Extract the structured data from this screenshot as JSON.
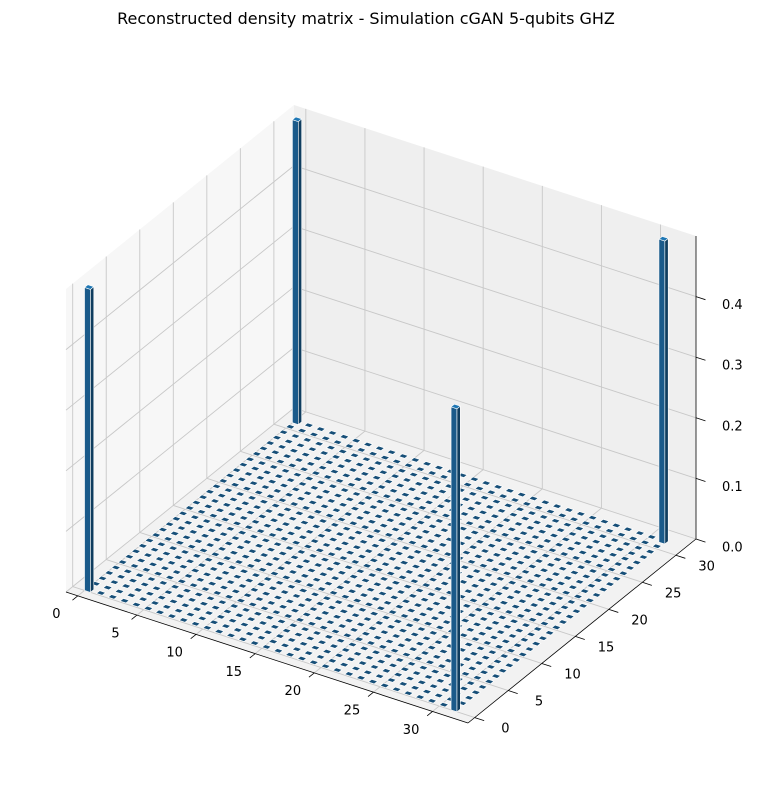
{
  "chart_data": {
    "type": "bar3d",
    "title": "Reconstructed density matrix - Simulation cGAN 5-qubits GHZ",
    "xlabel": "",
    "ylabel": "",
    "zlabel": "",
    "grid_size": 32,
    "bar_color": "#1f77b4",
    "xlim": [
      -1,
      33
    ],
    "ylim": [
      -1,
      33
    ],
    "zlim": [
      0,
      0.5
    ],
    "x_ticks": [
      "0",
      "5",
      "10",
      "15",
      "20",
      "25",
      "30"
    ],
    "y_ticks": [
      "0",
      "5",
      "10",
      "15",
      "20",
      "25",
      "30"
    ],
    "z_ticks": [
      "0.0",
      "0.1",
      "0.2",
      "0.3",
      "0.4"
    ],
    "background_value": 0.0,
    "bars": [
      {
        "x": 0,
        "y": 0,
        "value": 0.5
      },
      {
        "x": 0,
        "y": 31,
        "value": 0.5
      },
      {
        "x": 31,
        "y": 0,
        "value": 0.5
      },
      {
        "x": 31,
        "y": 31,
        "value": 0.5
      }
    ],
    "grid": true
  }
}
